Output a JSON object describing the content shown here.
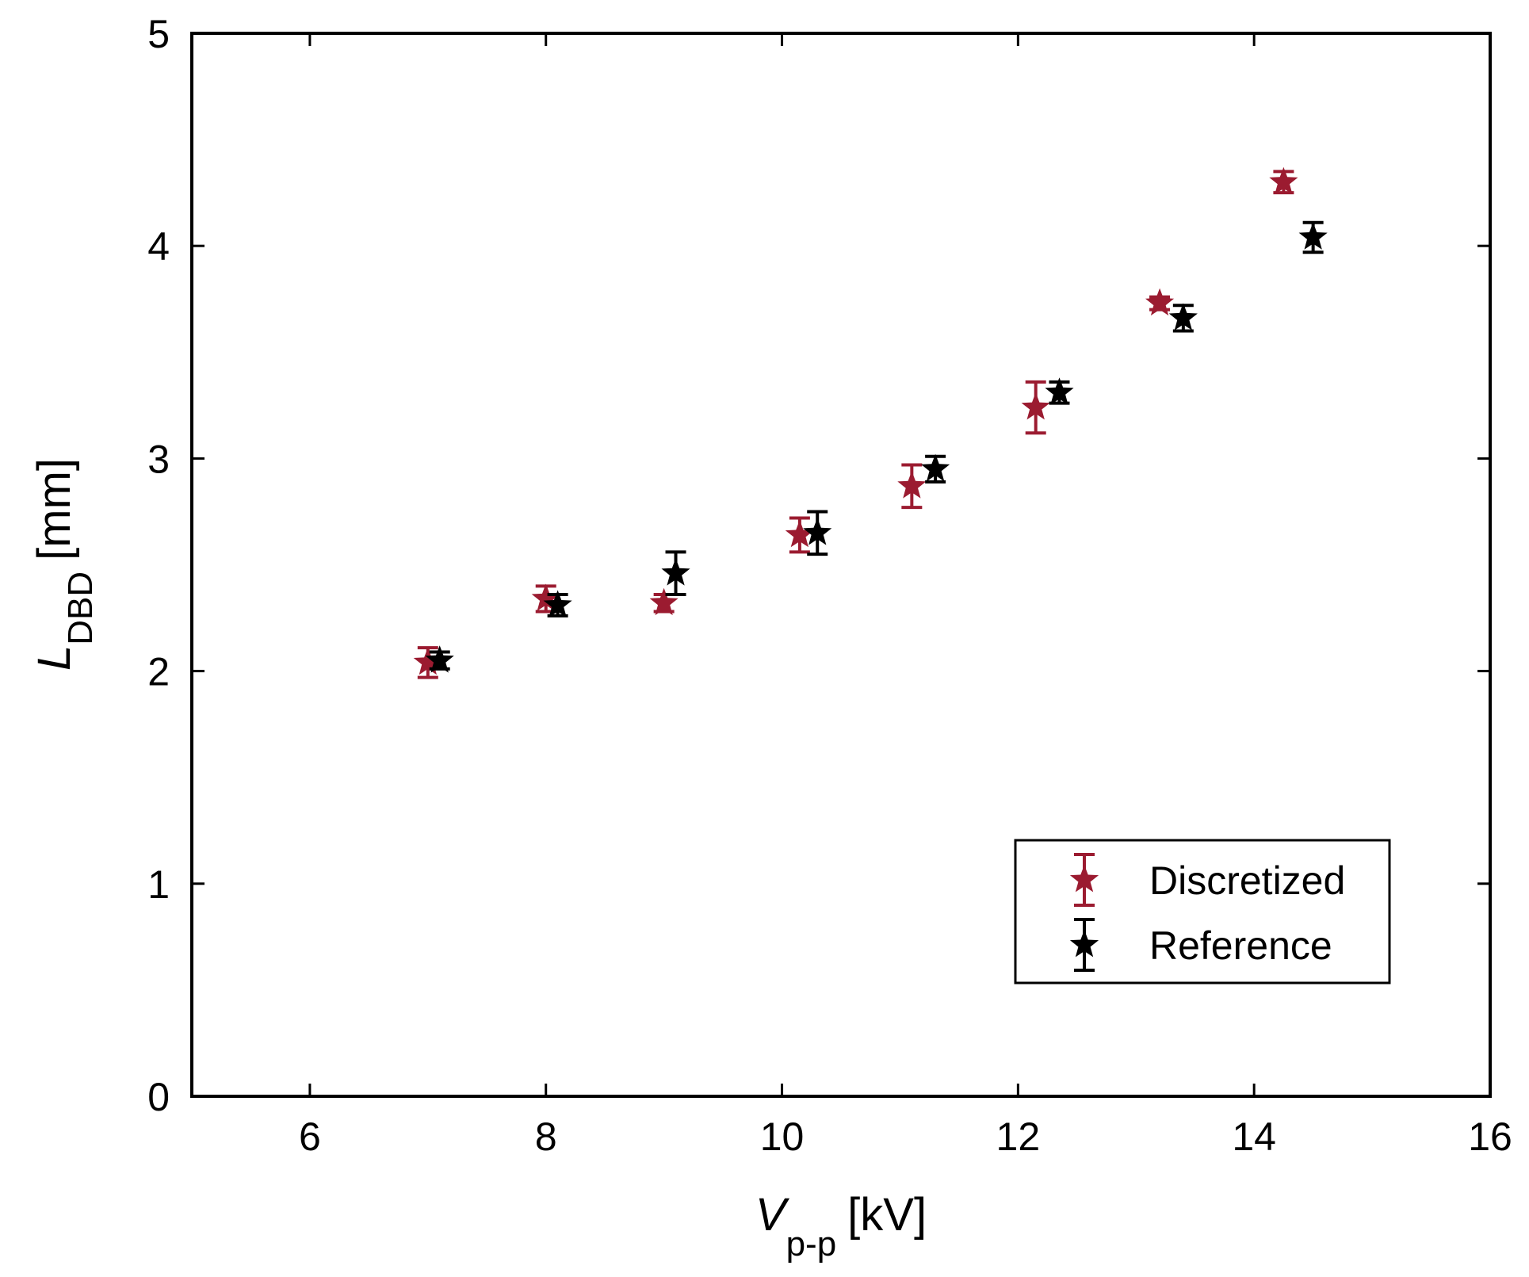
{
  "chart_data": {
    "type": "scatter",
    "title": "",
    "xlabel": {
      "main": "V",
      "sub": "p-p",
      "unit": "[kV]"
    },
    "ylabel": {
      "main": "L",
      "sub": "DBD",
      "unit": "[mm]"
    },
    "xlim": [
      5,
      16
    ],
    "ylim": [
      0,
      5
    ],
    "xticks": [
      6,
      8,
      10,
      12,
      14,
      16
    ],
    "yticks": [
      0,
      1,
      2,
      3,
      4,
      5
    ],
    "grid": false,
    "legend_position": "bottom-right",
    "series": [
      {
        "name": "Discretized",
        "color": "#9b1b30",
        "marker": "star",
        "x": [
          7.0,
          8.0,
          9.0,
          10.15,
          11.1,
          12.15,
          13.2,
          14.25
        ],
        "y": [
          2.04,
          2.34,
          2.32,
          2.64,
          2.87,
          3.24,
          3.73,
          4.3
        ],
        "err": [
          0.07,
          0.06,
          0.04,
          0.08,
          0.1,
          0.12,
          0.03,
          0.05
        ]
      },
      {
        "name": "Reference",
        "color": "#000000",
        "marker": "star",
        "x": [
          7.1,
          8.1,
          9.1,
          10.3,
          11.3,
          12.35,
          13.4,
          14.5
        ],
        "y": [
          2.05,
          2.31,
          2.46,
          2.65,
          2.95,
          3.31,
          3.66,
          4.04
        ],
        "err": [
          0.04,
          0.05,
          0.1,
          0.1,
          0.06,
          0.05,
          0.06,
          0.07
        ]
      }
    ]
  }
}
